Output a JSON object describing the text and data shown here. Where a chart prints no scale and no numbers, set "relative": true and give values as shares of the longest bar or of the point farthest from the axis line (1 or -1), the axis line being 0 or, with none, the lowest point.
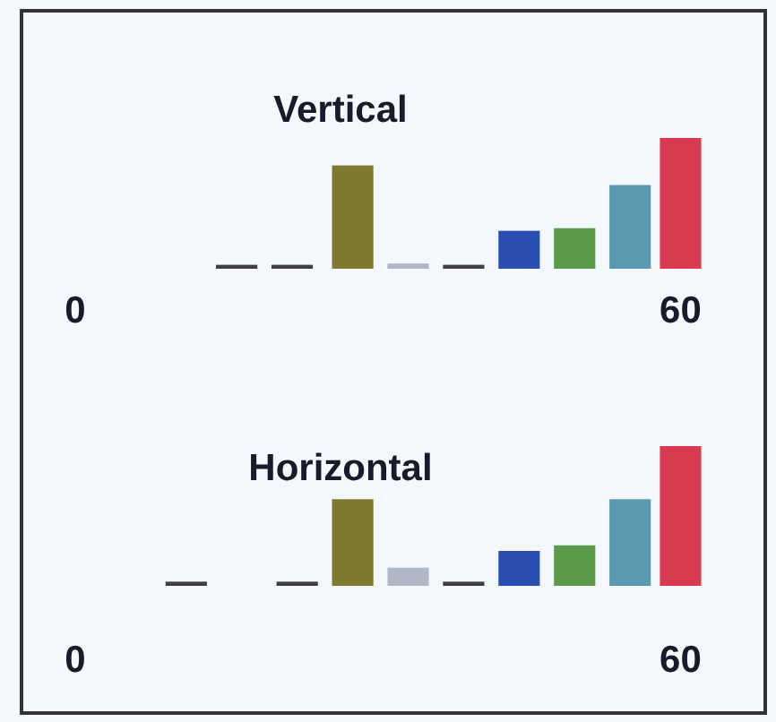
{
  "chart_data": [
    {
      "type": "bar",
      "title": "Vertical",
      "relative": true,
      "x": [
        16,
        21.5,
        27.5,
        33,
        38.5,
        44,
        49.5,
        55,
        60
      ],
      "values": [
        0.03,
        0.03,
        0.79,
        0.04,
        0.03,
        0.29,
        0.31,
        0.64,
        1
      ],
      "colors": [
        "#404040",
        "#404040",
        "#7f7a30",
        "#b0b8c8",
        "#404040",
        "#2a4fb0",
        "#5a9a4a",
        "#5a9ab0",
        "#d83a50"
      ],
      "xlim": [
        0,
        62
      ],
      "xticks": [
        {
          "value": 0,
          "label": "0"
        },
        60
      ]
    },
    {
      "type": "bar",
      "title": "Horizontal",
      "relative": true,
      "x": [
        11,
        22,
        27.5,
        33,
        38.5,
        44,
        49.5,
        55,
        60
      ],
      "values": [
        0.03,
        0.03,
        0.62,
        0.13,
        0.03,
        0.25,
        0.29,
        0.62,
        1
      ],
      "colors": [
        "#404040",
        "#404040",
        "#7f7a30",
        "#b0b8c8",
        "#404040",
        "#2a4fb0",
        "#5a9a4a",
        "#5a9ab0",
        "#d83a50"
      ],
      "xlim": [
        0,
        62
      ],
      "xticks": [
        {
          "value": 0,
          "label": "0"
        },
        60
      ]
    }
  ]
}
